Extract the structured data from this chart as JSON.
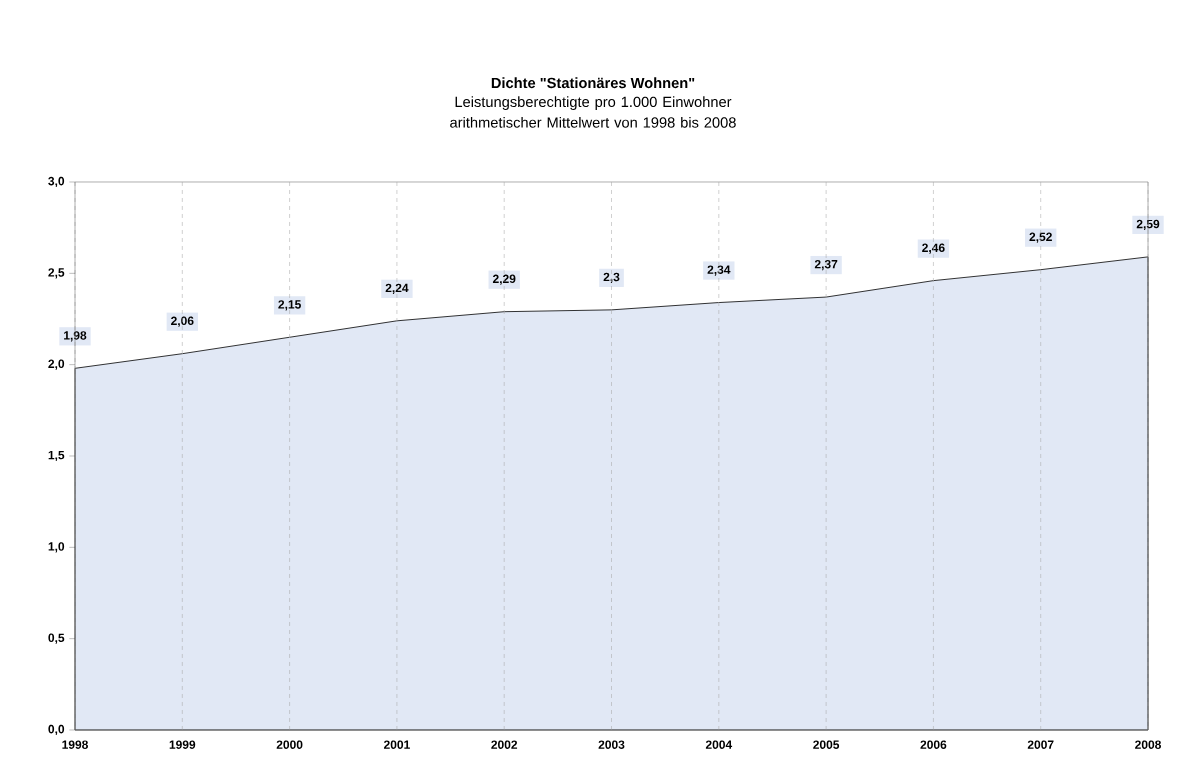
{
  "chart_data": {
    "type": "area",
    "title": "Dichte \"Stationäres Wohnen\"",
    "subtitle": "Leistungsberechtigte pro 1.000 Einwohner\narithmetischer Mittelwert von 1998 bis 2008",
    "categories": [
      "1998",
      "1999",
      "2000",
      "2001",
      "2002",
      "2003",
      "2004",
      "2005",
      "2006",
      "2007",
      "2008"
    ],
    "series": [
      {
        "color": "#e1e8f5",
        "values": [
          1.98,
          2.06,
          2.15,
          2.24,
          2.29,
          2.3,
          2.34,
          2.37,
          2.46,
          2.52,
          2.59
        ],
        "value_labels": [
          "1,98",
          "2,06",
          "2,15",
          "2,24",
          "2,29",
          "2,3",
          "2,34",
          "2,37",
          "2,46",
          "2,52",
          "2,59"
        ]
      }
    ],
    "ylim": [
      0,
      3
    ],
    "yticks": [
      {
        "value": 0,
        "label": "0,0"
      },
      {
        "value": 0.5,
        "label": "0,5"
      },
      {
        "value": 1,
        "label": "1,0"
      },
      {
        "value": 1.5,
        "label": "1,5"
      },
      {
        "value": 2,
        "label": "2,0"
      },
      {
        "value": 2.5,
        "label": "2,5"
      },
      {
        "value": 3,
        "label": "3,0"
      }
    ],
    "grid": "x"
  }
}
